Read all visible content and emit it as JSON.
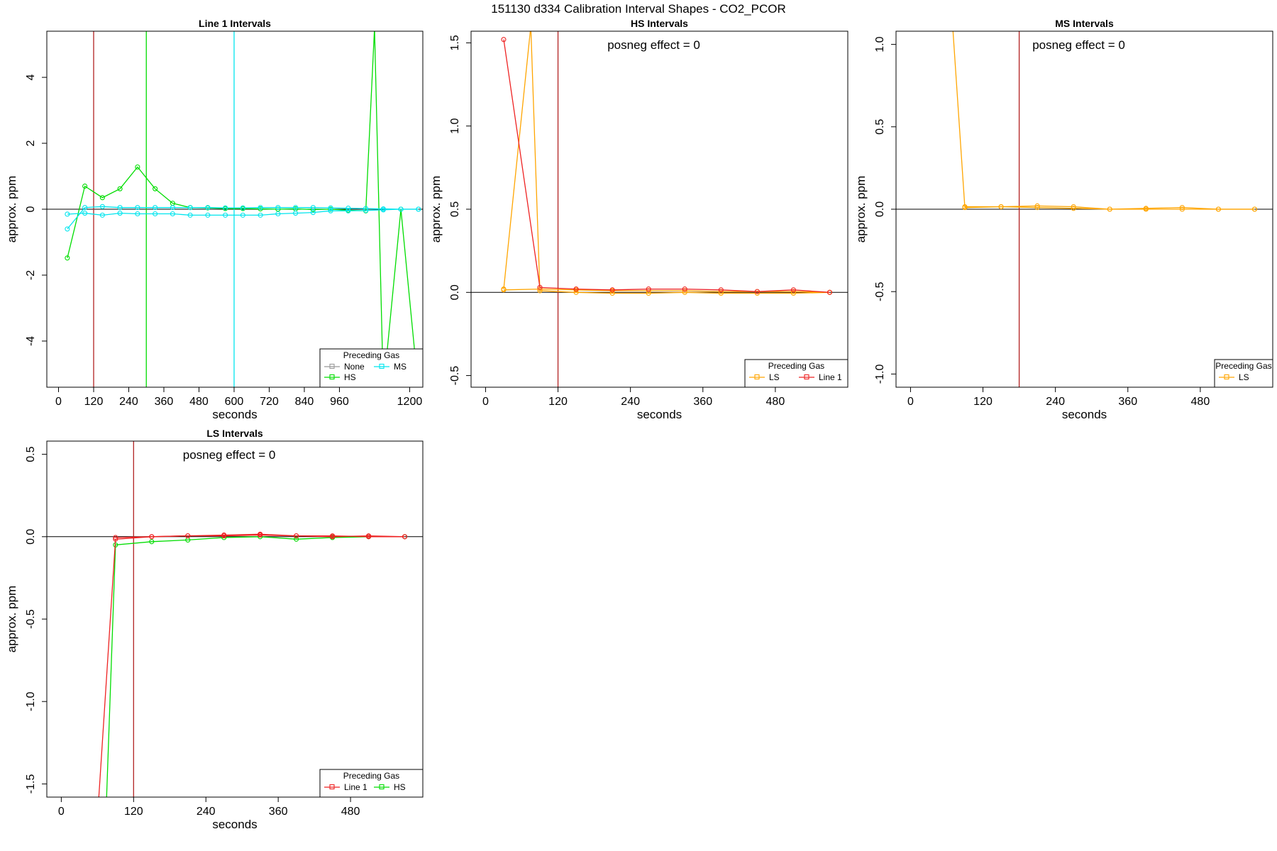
{
  "page_title": "151130  d334   Calibration Interval Shapes - CO2_PCOR",
  "chart_data": [
    {
      "id": "line1",
      "type": "line",
      "title": "Line 1 Intervals",
      "xlabel": "seconds",
      "ylabel": "approx. ppm",
      "xlim": [
        -40,
        1245
      ],
      "ylim": [
        -5.4,
        5.4
      ],
      "xticks": [
        0,
        120,
        240,
        360,
        480,
        600,
        720,
        840,
        960,
        1200
      ],
      "xtick_labels": [
        "0",
        "120",
        "240",
        "360",
        "480",
        "600",
        "720",
        "840",
        "960",
        "1200"
      ],
      "yticks": [
        -4,
        -2,
        0,
        2,
        4
      ],
      "ytick_labels": [
        "-4",
        "-2",
        "0",
        "2",
        "4"
      ],
      "hline": 0,
      "vlines": [
        {
          "x": 120,
          "color": "#b22222"
        },
        {
          "x": 300,
          "color": "#00dd00"
        },
        {
          "x": 600,
          "color": "#00e5ee"
        }
      ],
      "annotation": "",
      "legend": {
        "title": "Preceding Gas",
        "position": "bottom-right",
        "entries": [
          {
            "name": "None",
            "color": "#999999"
          },
          {
            "name": "MS",
            "color": "#00e5ee"
          },
          {
            "name": "HS",
            "color": "#00dd00"
          }
        ]
      },
      "series": [
        {
          "name": "HS",
          "color": "#00dd00",
          "x": [
            30,
            90,
            150,
            210,
            270,
            330,
            390,
            450,
            510,
            570,
            630,
            690,
            750,
            810,
            870,
            930,
            990,
            1050,
            1080,
            1110,
            1170,
            1230
          ],
          "y": [
            -1.48,
            0.7,
            0.35,
            0.62,
            1.28,
            0.62,
            0.18,
            0.05,
            0.04,
            0.02,
            0.02,
            0.01,
            0.0,
            0.01,
            -0.01,
            0.0,
            -0.03,
            -0.05,
            5.5,
            -5.5,
            0.0,
            -5.5
          ]
        },
        {
          "name": "MS",
          "color": "#00e5ee",
          "x": [
            30,
            90,
            150,
            210,
            270,
            330,
            390,
            450,
            510,
            570,
            630,
            690,
            750,
            810,
            870,
            930,
            990,
            1050,
            1110,
            1170,
            1230
          ],
          "y": [
            -0.15,
            -0.12,
            -0.18,
            -0.12,
            -0.14,
            -0.14,
            -0.14,
            -0.18,
            -0.18,
            -0.18,
            -0.18,
            -0.18,
            -0.14,
            -0.12,
            -0.1,
            -0.05,
            -0.05,
            -0.04,
            -0.02,
            0.0,
            0.0
          ]
        },
        {
          "name": "MS",
          "color": "#00e5ee",
          "x": [
            30,
            90,
            150,
            210,
            270,
            330,
            390,
            450,
            510,
            570,
            630,
            690,
            750,
            810,
            870,
            930,
            990,
            1050,
            1110,
            1170,
            1230
          ],
          "y": [
            -0.6,
            0.05,
            0.08,
            0.05,
            0.05,
            0.05,
            0.05,
            0.05,
            0.05,
            0.04,
            0.04,
            0.05,
            0.05,
            0.05,
            0.05,
            0.04,
            0.03,
            0.02,
            0.01,
            0.0,
            0.0
          ]
        }
      ]
    },
    {
      "id": "hs",
      "type": "line",
      "title": "HS Intervals",
      "xlabel": "seconds",
      "ylabel": "approx. ppm",
      "xlim": [
        -24,
        600
      ],
      "ylim": [
        -0.57,
        1.57
      ],
      "xticks": [
        0,
        120,
        240,
        360,
        480
      ],
      "xtick_labels": [
        "0",
        "120",
        "240",
        "360",
        "480"
      ],
      "yticks": [
        -0.5,
        0.0,
        0.5,
        1.0,
        1.5
      ],
      "ytick_labels": [
        "-0.5",
        "0.0",
        "0.5",
        "1.0",
        "1.5"
      ],
      "hline": 0,
      "vlines": [
        {
          "x": 120,
          "color": "#b22222"
        }
      ],
      "annotation": "posneg effect = 0",
      "legend": {
        "title": "Preceding Gas",
        "position": "bottom-right",
        "entries": [
          {
            "name": "LS",
            "color": "#ffa500"
          },
          {
            "name": "Line 1",
            "color": "#ee2222"
          }
        ]
      },
      "series": [
        {
          "name": "LS",
          "color": "#ffa500",
          "x": [
            30,
            75,
            90,
            150,
            210,
            270,
            330,
            390,
            450,
            510,
            570
          ],
          "y": [
            0.02,
            1.6,
            0.01,
            0.0,
            -0.005,
            -0.005,
            0.0,
            -0.005,
            -0.005,
            -0.005,
            0.0
          ]
        },
        {
          "name": "LS",
          "color": "#ffa500",
          "x": [
            30,
            90,
            150,
            210,
            270,
            330,
            390,
            450,
            510,
            570
          ],
          "y": [
            0.015,
            0.02,
            0.015,
            0.01,
            0.01,
            0.01,
            0.005,
            0.005,
            0.005,
            0.0
          ]
        },
        {
          "name": "Line 1",
          "color": "#ee2222",
          "x": [
            30,
            90,
            150,
            210,
            270,
            330,
            390,
            450,
            510,
            570
          ],
          "y": [
            1.52,
            0.03,
            0.02,
            0.015,
            0.02,
            0.02,
            0.015,
            0.005,
            0.015,
            0.0
          ]
        }
      ]
    },
    {
      "id": "ms",
      "type": "line",
      "title": "MS Intervals",
      "xlabel": "seconds",
      "ylabel": "approx. ppm",
      "xlim": [
        -24,
        600
      ],
      "ylim": [
        -1.08,
        1.08
      ],
      "xticks": [
        0,
        120,
        240,
        360,
        480
      ],
      "xtick_labels": [
        "0",
        "120",
        "240",
        "360",
        "480"
      ],
      "yticks": [
        -1.0,
        -0.5,
        0.0,
        0.5,
        1.0
      ],
      "ytick_labels": [
        "-1.0",
        "-0.5",
        "0.0",
        "0.5",
        "1.0"
      ],
      "hline": 0,
      "vlines": [
        {
          "x": 180,
          "color": "#b22222"
        }
      ],
      "annotation": "posneg effect = 0",
      "legend": {
        "title": "Preceding Gas",
        "position": "bottom-right",
        "entries": [
          {
            "name": "LS",
            "color": "#ffa500"
          }
        ]
      },
      "series": [
        {
          "name": "LS",
          "color": "#ffa500",
          "x": [
            70,
            90,
            150,
            210,
            270,
            330,
            390,
            450,
            510,
            570
          ],
          "y": [
            1.1,
            0.01,
            0.015,
            0.02,
            0.015,
            0.0,
            0.005,
            0.01,
            0.0,
            0.0
          ]
        },
        {
          "name": "LS",
          "color": "#ffa500",
          "x": [
            90,
            150,
            210,
            270,
            330,
            390,
            450,
            510,
            570
          ],
          "y": [
            0.015,
            0.015,
            0.01,
            0.005,
            0.0,
            0.0,
            0.0,
            0.0,
            0.0
          ]
        }
      ]
    },
    {
      "id": "ls",
      "type": "line",
      "title": "LS Intervals",
      "xlabel": "seconds",
      "ylabel": "approx. ppm",
      "xlim": [
        -24,
        600
      ],
      "ylim": [
        -1.58,
        0.58
      ],
      "xticks": [
        0,
        120,
        240,
        360,
        480
      ],
      "xtick_labels": [
        "0",
        "120",
        "240",
        "360",
        "480"
      ],
      "yticks": [
        -1.5,
        -1.0,
        -0.5,
        0.0,
        0.5
      ],
      "ytick_labels": [
        "-1.5",
        "-1.0",
        "-0.5",
        "0.0",
        "0.5"
      ],
      "hline": 0,
      "vlines": [
        {
          "x": 120,
          "color": "#b22222"
        }
      ],
      "annotation": "posneg effect = 0",
      "legend": {
        "title": "Preceding Gas",
        "position": "bottom-right",
        "entries": [
          {
            "name": "Line 1",
            "color": "#ee2222"
          },
          {
            "name": "HS",
            "color": "#00dd00"
          }
        ]
      },
      "series": [
        {
          "name": "HS",
          "color": "#00dd00",
          "x": [
            75,
            90,
            150,
            210,
            270,
            330,
            390,
            450,
            510,
            570
          ],
          "y": [
            -1.6,
            -0.05,
            -0.03,
            -0.02,
            -0.005,
            0.0,
            -0.015,
            -0.005,
            0.0,
            0.0
          ]
        },
        {
          "name": "Line 1",
          "color": "#ee2222",
          "x": [
            62,
            90,
            150,
            210,
            270,
            330,
            390,
            450,
            510,
            570
          ],
          "y": [
            -1.6,
            -0.015,
            0.0,
            0.005,
            0.005,
            0.01,
            0.005,
            0.005,
            0.0,
            0.0
          ]
        },
        {
          "name": "Line 1",
          "color": "#ee2222",
          "x": [
            90,
            150,
            210,
            270,
            330,
            390,
            450,
            510,
            570
          ],
          "y": [
            -0.005,
            0.0,
            0.005,
            0.01,
            0.015,
            0.005,
            0.0,
            0.005,
            0.0
          ]
        }
      ]
    }
  ]
}
